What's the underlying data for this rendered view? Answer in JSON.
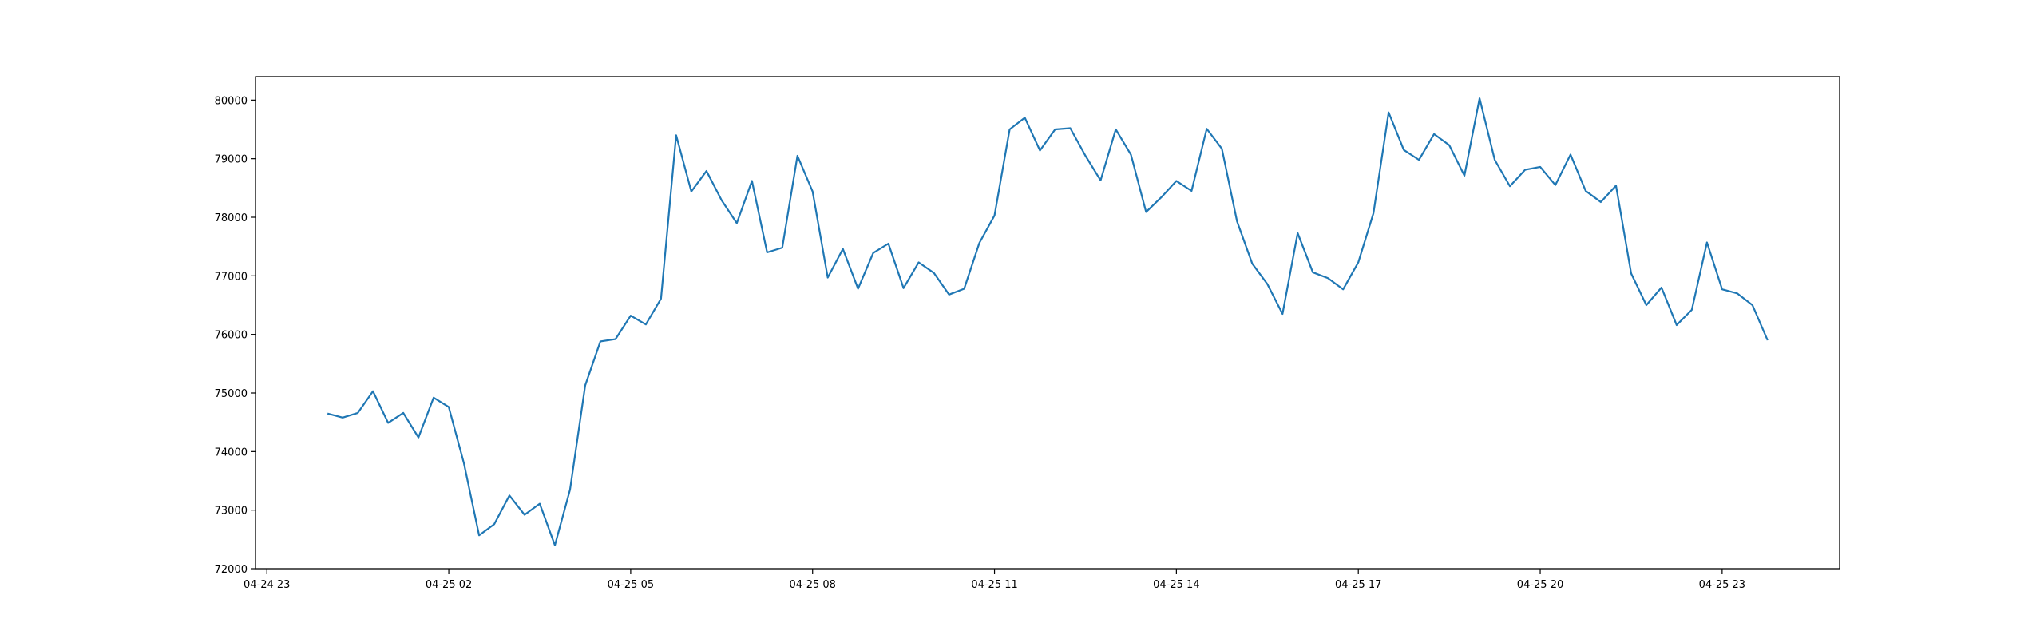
{
  "chart_data": {
    "type": "line",
    "x": [
      1,
      1.25,
      1.5,
      1.75,
      2,
      2.25,
      2.5,
      2.75,
      3,
      3.25,
      3.5,
      3.75,
      4,
      4.25,
      4.5,
      4.75,
      5,
      5.25,
      5.5,
      5.75,
      6,
      6.25,
      6.5,
      6.75,
      7,
      7.25,
      7.5,
      7.75,
      8,
      8.25,
      8.5,
      8.75,
      9,
      9.25,
      9.5,
      9.75,
      10,
      10.25,
      10.5,
      10.75,
      11,
      11.25,
      11.5,
      11.75,
      12,
      12.25,
      12.5,
      12.75,
      13,
      13.25,
      13.5,
      13.75,
      14,
      14.25,
      14.5,
      14.75,
      15,
      15.25,
      15.5,
      15.75,
      16,
      16.25,
      16.5,
      16.75,
      17,
      17.25,
      17.5,
      17.75,
      18,
      18.25,
      18.5,
      18.75,
      19,
      19.25,
      19.5,
      19.75,
      20,
      20.25,
      20.5,
      20.75,
      21,
      21.25,
      21.5,
      21.75,
      22,
      22.25,
      22.5,
      22.75,
      23,
      23.25,
      23.5,
      23.75,
      24,
      24.25,
      24.5,
      24.75
    ],
    "series": [
      {
        "color": "#1f77b4",
        "values": [
          74650,
          74580,
          74660,
          75030,
          74490,
          74660,
          74240,
          74920,
          74760,
          73800,
          72570,
          72760,
          73250,
          72920,
          73110,
          72400,
          73350,
          75130,
          75880,
          75920,
          76320,
          76170,
          76610,
          79400,
          78440,
          78790,
          78290,
          77900,
          78620,
          77400,
          77480,
          79050,
          78440,
          76970,
          77460,
          76780,
          77390,
          77550,
          76790,
          77230,
          77050,
          76680,
          76780,
          77560,
          78030,
          79500,
          79700,
          79140,
          79500,
          79520,
          79050,
          78630,
          79500,
          79070,
          78090,
          78340,
          78620,
          78450,
          79510,
          79170,
          77930,
          77210,
          76860,
          76350,
          77730,
          77060,
          76960,
          76770,
          77230,
          78070,
          79790,
          79150,
          78980,
          79420,
          79230,
          78710,
          80030,
          78980,
          78530,
          78810,
          78860,
          78550,
          79070,
          78450,
          78260,
          78540,
          77040,
          76500,
          76800,
          76160,
          76420,
          77570,
          76770,
          76700,
          76500,
          75900
        ]
      }
    ],
    "xlim": [
      -0.1875,
      25.9375
    ],
    "xticks": [
      {
        "value": 0,
        "label": "04-24 23"
      },
      {
        "value": 3,
        "label": "04-25 02"
      },
      {
        "value": 6,
        "label": "04-25 05"
      },
      {
        "value": 9,
        "label": "04-25 08"
      },
      {
        "value": 12,
        "label": "04-25 11"
      },
      {
        "value": 15,
        "label": "04-25 14"
      },
      {
        "value": 18,
        "label": "04-25 17"
      },
      {
        "value": 21,
        "label": "04-25 20"
      },
      {
        "value": 24,
        "label": "04-25 23"
      }
    ],
    "ylim": [
      72000,
      80400
    ],
    "yticks": [
      72000,
      73000,
      74000,
      75000,
      76000,
      77000,
      78000,
      79000,
      80000
    ]
  }
}
